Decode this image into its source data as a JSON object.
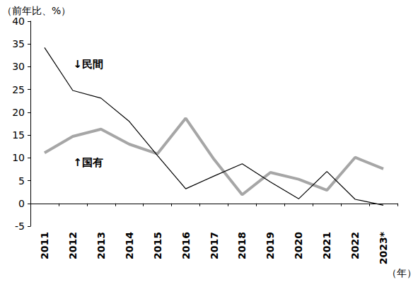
{
  "chart_data": {
    "type": "line",
    "y_label": "（前年比、%）",
    "x_label": "（年）",
    "categories": [
      "2011",
      "2012",
      "2013",
      "2014",
      "2015",
      "2016",
      "2017",
      "2018",
      "2019",
      "2020",
      "2021",
      "2022",
      "2023*"
    ],
    "series": [
      {
        "name": "民間",
        "color": "#000000",
        "line_style": "thin",
        "values": [
          34.2,
          24.8,
          23.1,
          18.0,
          10.5,
          3.2,
          6.0,
          8.7,
          4.7,
          1.0,
          7.0,
          0.9,
          -0.4
        ]
      },
      {
        "name": "国有",
        "color": "#a6a6a6",
        "line_style": "thick",
        "values": [
          11.1,
          14.7,
          16.3,
          13.0,
          10.9,
          18.7,
          9.7,
          1.9,
          6.8,
          5.3,
          2.9,
          10.1,
          7.6
        ]
      }
    ],
    "annotations": [
      {
        "text": "↓民間",
        "x": "2012",
        "y": 30.5
      },
      {
        "text": "↑国有",
        "x": "2012",
        "y": 9
      }
    ],
    "ylim": [
      -5,
      40
    ],
    "yticks": [
      -5,
      0,
      5,
      10,
      15,
      20,
      25,
      30,
      35,
      40
    ],
    "grid": false
  }
}
